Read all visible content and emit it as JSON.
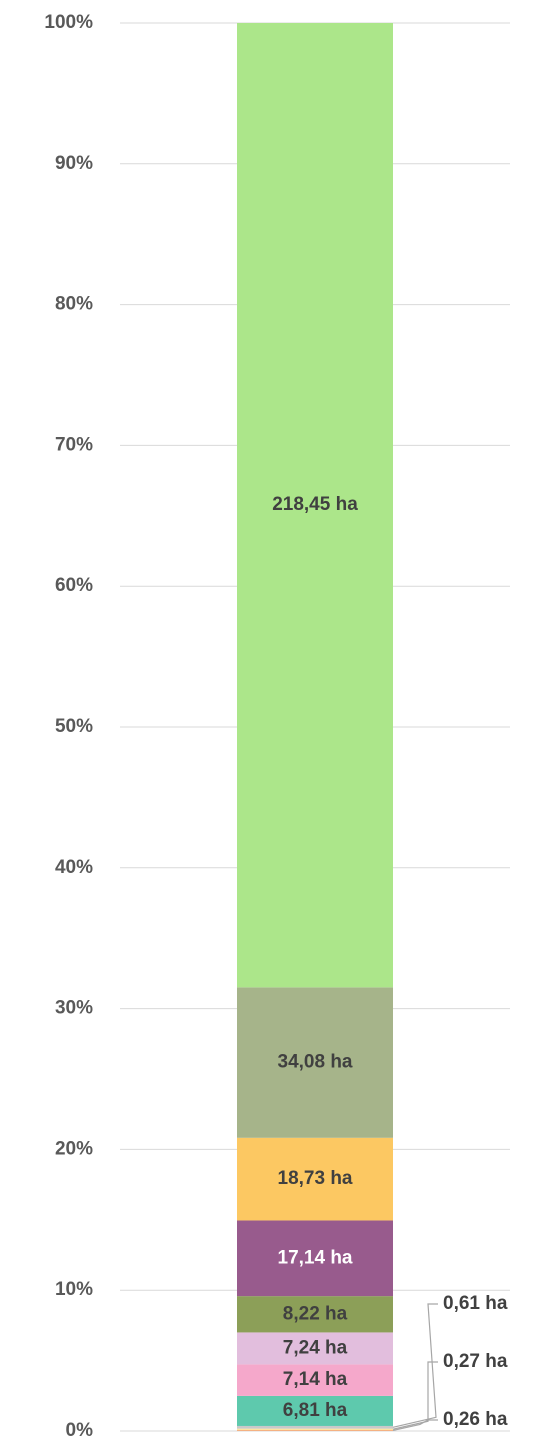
{
  "chart_data": {
    "type": "stacked_percent_bar",
    "values": [
      0.26,
      0.27,
      0.61,
      6.81,
      7.14,
      7.24,
      8.22,
      17.14,
      18.73,
      34.08,
      218.45
    ],
    "value_labels": [
      "0,26 ha",
      "0,27 ha",
      "0,61 ha",
      "6,81 ha",
      "7,14 ha",
      "7,24 ha",
      "8,22 ha",
      "17,14 ha",
      "18,73 ha",
      "34,08 ha",
      "218,45 ha"
    ],
    "colors": [
      "#f4b183",
      "#ffe699",
      "#c9c9c9",
      "#5ec9ad",
      "#f5a8cb",
      "#e2bedd",
      "#8c9f58",
      "#985b8d",
      "#fcc862",
      "#a6b48a",
      "#ace68a"
    ],
    "ylim": [
      0,
      100
    ],
    "yticks": [
      {
        "value": 0,
        "label": "0%"
      },
      {
        "value": 10,
        "label": "10%"
      },
      {
        "value": 20,
        "label": "20%"
      },
      {
        "value": 30,
        "label": "30%"
      },
      {
        "value": 40,
        "label": "40%"
      },
      {
        "value": 50,
        "label": "50%"
      },
      {
        "value": 60,
        "label": "60%"
      },
      {
        "value": 70,
        "label": "70%"
      },
      {
        "value": 80,
        "label": "80%"
      },
      {
        "value": 90,
        "label": "90%"
      },
      {
        "value": 100,
        "label": "100%"
      }
    ],
    "grid": true
  }
}
